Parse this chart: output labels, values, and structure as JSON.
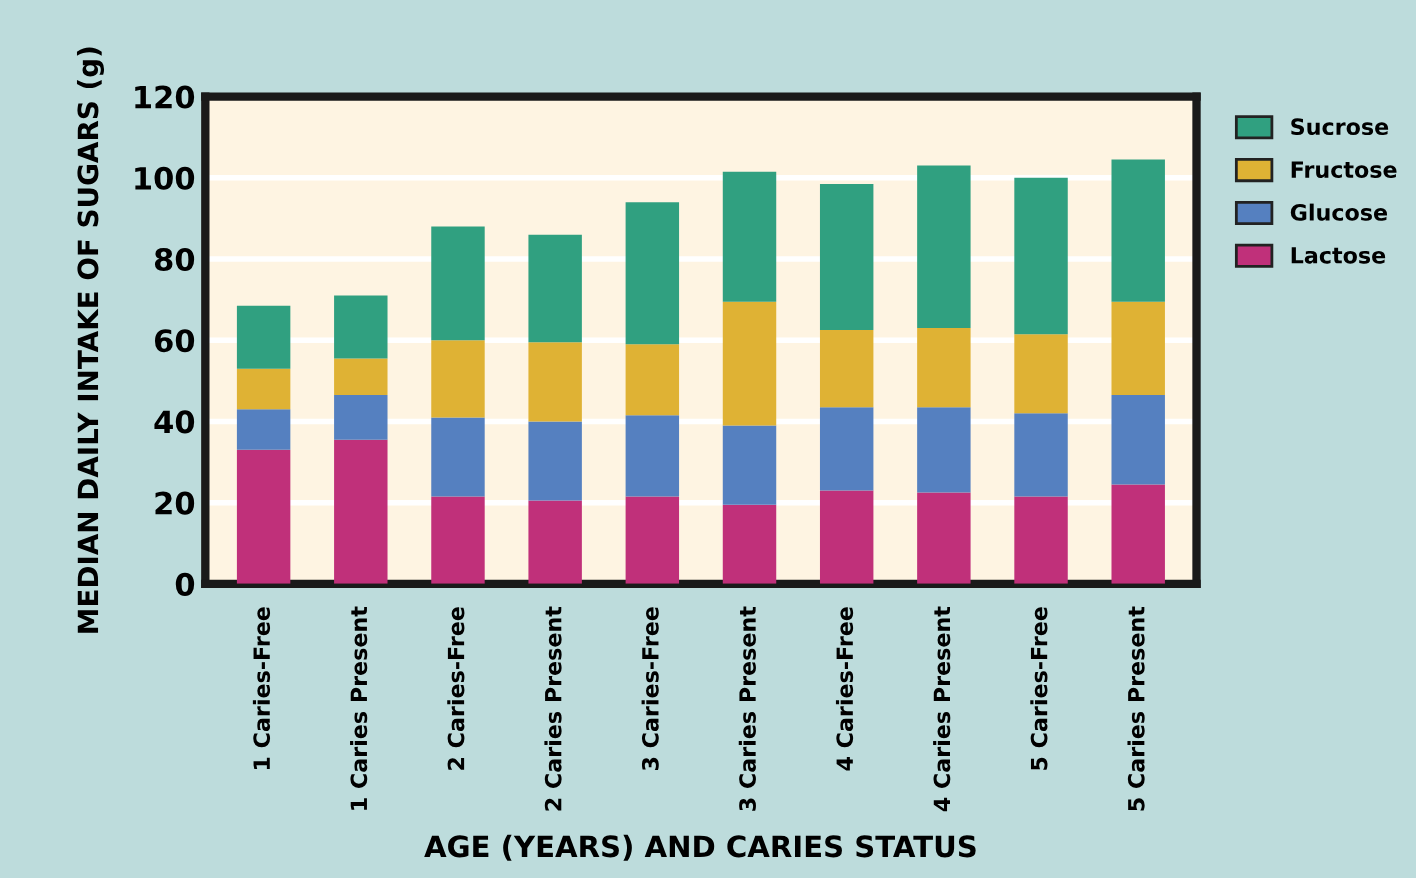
{
  "chart_data": {
    "type": "bar",
    "stacked": true,
    "xlabel": "AGE (YEARS) AND CARIES STATUS",
    "ylabel": "MEDIAN DAILY INTAKE OF SUGARS (g)",
    "categories": [
      "1 Caries-Free",
      "1 Caries Present",
      "2 Caries-Free",
      "2 Caries Present",
      "3 Caries-Free",
      "3 Caries Present",
      "4 Caries-Free",
      "4 Caries Present",
      "5 Caries-Free",
      "5 Caries Present"
    ],
    "series": [
      {
        "name": "Lactose",
        "color": "#c0307a",
        "values": [
          33,
          35.5,
          21.5,
          20.5,
          21.5,
          19.5,
          23,
          22.5,
          21.5,
          24.5
        ]
      },
      {
        "name": "Glucose",
        "color": "#5580c0",
        "values": [
          10,
          11,
          19.5,
          19.5,
          20,
          19.5,
          20.5,
          21,
          20.5,
          22
        ]
      },
      {
        "name": "Fructose",
        "color": "#dfb234",
        "values": [
          10,
          9,
          19,
          19.5,
          17.5,
          30.5,
          19,
          19.5,
          19.5,
          23
        ]
      },
      {
        "name": "Sucrose",
        "color": "#30a080",
        "values": [
          15.5,
          15.5,
          28,
          26.5,
          35,
          32,
          36,
          40,
          38.5,
          35
        ]
      }
    ],
    "ylim": [
      0,
      120
    ],
    "yticks": [
      0,
      20,
      40,
      60,
      80,
      100,
      120
    ],
    "grid": "y",
    "legend": "top right"
  }
}
